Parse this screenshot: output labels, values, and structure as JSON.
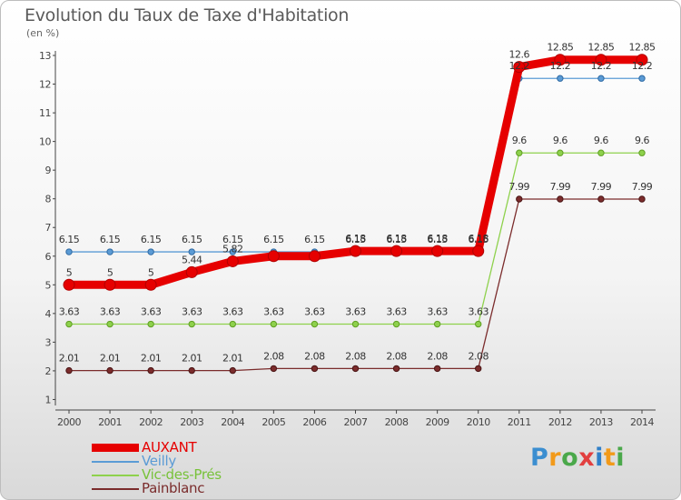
{
  "title": "Evolution du Taux de Taxe d'Habitation",
  "unit": "(en %)",
  "brand": "Proxiti",
  "brand_colors": [
    "#3b8ed0",
    "#f29a1a",
    "#4aa84a",
    "#e23f3f",
    "#2f7fc8",
    "#f29a1a",
    "#4aa84a"
  ],
  "chart_data": {
    "type": "line",
    "title": "Evolution du Taux de Taxe d'Habitation",
    "ylabel": "(en %)",
    "x": [
      2000,
      2001,
      2002,
      2003,
      2004,
      2005,
      2006,
      2007,
      2008,
      2009,
      2010,
      2011,
      2012,
      2013,
      2014
    ],
    "ylim": [
      0,
      13
    ],
    "yticks": [
      1,
      2,
      3,
      4,
      5,
      6,
      7,
      8,
      9,
      10,
      11,
      12,
      13
    ],
    "grid": false,
    "legend_position": "bottom-left",
    "series": [
      {
        "name": "AUXANT",
        "color": "#e60000",
        "values": [
          5,
          5,
          5,
          5.44,
          5.82,
          6,
          6,
          6.18,
          6.18,
          6.18,
          6.18,
          12.6,
          12.85,
          12.85,
          12.85
        ],
        "labels": [
          "5",
          "5",
          "5",
          "5.44",
          "5.82",
          "",
          "",
          "6.18",
          "6.18",
          "6.18",
          "6.18",
          "12.6",
          "12.85",
          "12.85",
          "12.85"
        ]
      },
      {
        "name": "Veilly",
        "color": "#5b9bd5",
        "values": [
          6.15,
          6.15,
          6.15,
          6.15,
          6.15,
          6.15,
          6.15,
          6.15,
          6.15,
          6.15,
          6.15,
          12.2,
          12.2,
          12.2,
          12.2
        ],
        "labels": [
          "6.15",
          "6.15",
          "6.15",
          "6.15",
          "6.15",
          "6.15",
          "6.15",
          "6.15",
          "6.15",
          "6.15",
          "6.15",
          "12.2",
          "12.2",
          "12.2",
          "12.2"
        ]
      },
      {
        "name": "Vic-des-Prés",
        "color": "#8ed14c",
        "values": [
          3.63,
          3.63,
          3.63,
          3.63,
          3.63,
          3.63,
          3.63,
          3.63,
          3.63,
          3.63,
          3.63,
          9.6,
          9.6,
          9.6,
          9.6
        ],
        "labels": [
          "3.63",
          "3.63",
          "3.63",
          "3.63",
          "3.63",
          "3.63",
          "3.63",
          "3.63",
          "3.63",
          "3.63",
          "3.63",
          "9.6",
          "9.6",
          "9.6",
          "9.6"
        ]
      },
      {
        "name": "Painblanc",
        "color": "#7b2c2c",
        "values": [
          2.01,
          2.01,
          2.01,
          2.01,
          2.01,
          2.08,
          2.08,
          2.08,
          2.08,
          2.08,
          2.08,
          7.99,
          7.99,
          7.99,
          7.99
        ],
        "labels": [
          "2.01",
          "2.01",
          "2.01",
          "2.01",
          "2.01",
          "2.08",
          "2.08",
          "2.08",
          "2.08",
          "2.08",
          "2.08",
          "7.99",
          "7.99",
          "7.99",
          "7.99"
        ]
      }
    ]
  }
}
